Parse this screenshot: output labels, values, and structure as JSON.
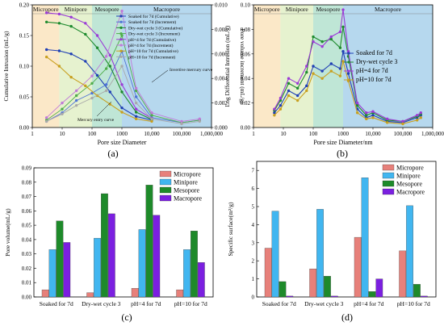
{
  "panels": {
    "a": {
      "label": "(a)",
      "chart_data": {
        "type": "line",
        "xlabel": "Pore size Diameter",
        "ylabel": "Cumulative Intrusion (mL/g)",
        "y2label": "Pore volume increment (mL/g)",
        "xscale": "log",
        "xlim": [
          1,
          1000000
        ],
        "xticks": [
          "1",
          "10",
          "100",
          "1000",
          "10,000",
          "100,000",
          "1,000,000"
        ],
        "ylim": [
          0,
          0.2
        ],
        "yticks": [
          "0.00",
          "0.05",
          "0.10",
          "0.15",
          "0.20"
        ],
        "y2lim": [
          0,
          0.01
        ],
        "y2ticks": [
          "0.000",
          "0.002",
          "0.004",
          "0.006",
          "0.008",
          "0.010"
        ],
        "regions": [
          {
            "name": "Micropore",
            "from": 1,
            "to": 8,
            "color": "#fbe8c8"
          },
          {
            "name": "Minipore",
            "from": 8,
            "to": 100,
            "color": "#e6f2cf"
          },
          {
            "name": "Mesopore",
            "from": 100,
            "to": 1000,
            "color": "#bfe6d6"
          },
          {
            "name": "Macropore",
            "from": 1000,
            "to": 1000000,
            "color": "#b6d8ee"
          }
        ],
        "annotations": [
          "Invertive mercury curve",
          "Mercury entry curve"
        ],
        "series": [
          {
            "name": "Soaked for 7d (Cumulative)",
            "color": "#1f3fb5",
            "axis": "left",
            "x": [
              3,
              8,
              20,
              60,
              150,
              400,
              1000,
              3000,
              10000
            ],
            "y": [
              0.127,
              0.125,
              0.12,
              0.108,
              0.085,
              0.058,
              0.032,
              0.018,
              0.012
            ]
          },
          {
            "name": "Soaked for 7d (Increment)",
            "color": "#4e73d6",
            "axis": "right",
            "x": [
              3,
              10,
              30,
              100,
              300,
              1000,
              3000,
              10000,
              100000,
              400000
            ],
            "y": [
              0.0005,
              0.0012,
              0.0022,
              0.0028,
              0.0035,
              0.0062,
              0.0025,
              0.0008,
              0.0004,
              0.0006
            ]
          },
          {
            "name": "Dry-wet cycle 3 (Cumulative)",
            "color": "#1e8b2e",
            "axis": "left",
            "x": [
              3,
              8,
              20,
              60,
              150,
              400,
              1000,
              3000,
              10000
            ],
            "y": [
              0.172,
              0.17,
              0.165,
              0.152,
              0.13,
              0.1,
              0.058,
              0.025,
              0.013
            ]
          },
          {
            "name": "Dry-wet cycle 3 (Increment)",
            "color": "#4fae4a",
            "axis": "right",
            "x": [
              3,
              10,
              30,
              100,
              300,
              1000,
              3000,
              10000,
              100000,
              400000
            ],
            "y": [
              0.0006,
              0.0015,
              0.0026,
              0.0036,
              0.0048,
              0.0075,
              0.003,
              0.001,
              0.0004,
              0.0006
            ]
          },
          {
            "name": "pH=4 for 7d (Cumulative)",
            "color": "#9b3bd6",
            "axis": "left",
            "x": [
              3,
              8,
              20,
              60,
              150,
              400,
              1000,
              3000,
              10000
            ],
            "y": [
              0.187,
              0.185,
              0.18,
              0.17,
              0.15,
              0.118,
              0.07,
              0.03,
              0.015
            ]
          },
          {
            "name": "pH=4 for 7d (Increment)",
            "color": "#c07ad8",
            "axis": "right",
            "x": [
              3,
              10,
              30,
              100,
              300,
              1000,
              3000,
              10000,
              100000,
              400000
            ],
            "y": [
              0.0008,
              0.002,
              0.003,
              0.0042,
              0.0058,
              0.0095,
              0.0032,
              0.0012,
              0.0005,
              0.0007
            ]
          },
          {
            "name": "pH=10 for 7d (Cumulative)",
            "color": "#c8a020",
            "axis": "left",
            "x": [
              3,
              8,
              20,
              60,
              150,
              400,
              1000,
              3000,
              10000
            ],
            "y": [
              0.115,
              0.1,
              0.082,
              0.068,
              0.052,
              0.038,
              0.025,
              0.014,
              0.01
            ]
          },
          {
            "name": "pH=10 for 7d (Increment)",
            "color": "#a9a9a9",
            "axis": "right",
            "x": [
              3,
              10,
              30,
              100,
              300,
              1000,
              3000,
              10000,
              100000,
              400000
            ],
            "y": [
              0.0005,
              0.0011,
              0.0018,
              0.0024,
              0.003,
              0.005,
              0.002,
              0.0007,
              0.0003,
              0.0005
            ]
          }
        ]
      }
    },
    "b": {
      "label": "(b)",
      "chart_data": {
        "type": "line",
        "xlabel": "Pore size Diameter/nm",
        "ylabel": "Log Differential Intrusion (mL/g)",
        "xscale": "log",
        "xlim": [
          1,
          1000000
        ],
        "xticks": [
          "1",
          "10",
          "100",
          "1000",
          "10,000",
          "100,000",
          "1,000,000"
        ],
        "ylim": [
          0,
          0.1
        ],
        "yticks": [
          "0.00",
          "0.02",
          "0.04",
          "0.06",
          "0.08",
          "0.10"
        ],
        "regions": [
          {
            "name": "Micropore",
            "from": 1,
            "to": 8,
            "color": "#fbe8c8"
          },
          {
            "name": "Minipore",
            "from": 8,
            "to": 100,
            "color": "#e6f2cf"
          },
          {
            "name": "Mesopore",
            "from": 100,
            "to": 1000,
            "color": "#bfe6d6"
          },
          {
            "name": "Macropore",
            "from": 1000,
            "to": 1000000,
            "color": "#b6d8ee"
          }
        ],
        "series": [
          {
            "name": "Soaked for 7d",
            "color": "#1f3fb5",
            "x": [
              5,
              8,
              15,
              30,
              60,
              100,
              200,
              400,
              800,
              1000,
              1500,
              3000,
              6000,
              10000,
              30000,
              100000,
              300000,
              400000
            ],
            "y": [
              0.012,
              0.018,
              0.03,
              0.026,
              0.034,
              0.05,
              0.046,
              0.052,
              0.048,
              0.062,
              0.044,
              0.015,
              0.008,
              0.01,
              0.005,
              0.004,
              0.008,
              0.01
            ]
          },
          {
            "name": "Dry-wet cycle 3",
            "color": "#1e8b2e",
            "x": [
              5,
              8,
              15,
              30,
              60,
              100,
              200,
              400,
              800,
              1000,
              1500,
              3000,
              6000,
              10000,
              30000,
              100000,
              300000,
              400000
            ],
            "y": [
              0.014,
              0.022,
              0.036,
              0.032,
              0.045,
              0.074,
              0.07,
              0.072,
              0.065,
              0.082,
              0.058,
              0.018,
              0.01,
              0.012,
              0.006,
              0.005,
              0.009,
              0.011
            ]
          },
          {
            "name": "pH=4 for 7d",
            "color": "#9b3bd6",
            "x": [
              5,
              8,
              15,
              30,
              60,
              100,
              200,
              400,
              800,
              1000,
              1500,
              3000,
              6000,
              10000,
              30000,
              100000,
              300000,
              400000
            ],
            "y": [
              0.015,
              0.024,
              0.04,
              0.036,
              0.05,
              0.07,
              0.066,
              0.074,
              0.078,
              0.096,
              0.062,
              0.02,
              0.012,
              0.013,
              0.007,
              0.005,
              0.01,
              0.012
            ]
          },
          {
            "name": "pH=10 for 7d",
            "color": "#c8a020",
            "x": [
              5,
              8,
              15,
              30,
              60,
              100,
              200,
              400,
              800,
              1000,
              1500,
              3000,
              6000,
              10000,
              30000,
              100000,
              300000,
              400000
            ],
            "y": [
              0.01,
              0.015,
              0.026,
              0.022,
              0.03,
              0.044,
              0.04,
              0.046,
              0.042,
              0.054,
              0.038,
              0.012,
              0.007,
              0.008,
              0.004,
              0.003,
              0.006,
              0.008
            ]
          }
        ]
      }
    },
    "c": {
      "label": "(c)",
      "chart_data": {
        "type": "bar",
        "ylabel": "Pore volume(mL/g)",
        "ylim": [
          0,
          0.09
        ],
        "yticks": [
          "0.00",
          "0.01",
          "0.02",
          "0.03",
          "0.04",
          "0.05",
          "0.06",
          "0.07",
          "0.08",
          "0.09"
        ],
        "categories": [
          "Soaked for 7d",
          "Dry-wet cycle 3",
          "pH=4 for 7d",
          "pH=10 for 7d"
        ],
        "series": [
          {
            "name": "Micropore",
            "color": "#e7807a",
            "values": [
              0.005,
              0.003,
              0.006,
              0.005
            ]
          },
          {
            "name": "Minipore",
            "color": "#41b6f0",
            "values": [
              0.033,
              0.041,
              0.047,
              0.033
            ]
          },
          {
            "name": "Mesopore",
            "color": "#1e8a2a",
            "values": [
              0.053,
              0.072,
              0.078,
              0.046
            ]
          },
          {
            "name": "Macropore",
            "color": "#7b1fe0",
            "values": [
              0.038,
              0.058,
              0.057,
              0.024
            ]
          }
        ]
      }
    },
    "d": {
      "label": "(d)",
      "chart_data": {
        "type": "bar",
        "ylabel": "Specific surface(m²/g)",
        "ylim": [
          0,
          7.5
        ],
        "yticks": [
          "0",
          "1",
          "2",
          "3",
          "4",
          "5",
          "6",
          "7"
        ],
        "categories": [
          "Soaked for 7d",
          "Dry-wet cycle 3",
          "pH=4 for 7d",
          "pH=10 for 7d"
        ],
        "series": [
          {
            "name": "Micropore",
            "color": "#e7807a",
            "values": [
              2.7,
              1.55,
              3.3,
              2.55
            ]
          },
          {
            "name": "Minipore",
            "color": "#41b6f0",
            "values": [
              4.75,
              4.85,
              6.6,
              5.05
            ]
          },
          {
            "name": "Mesopore",
            "color": "#1e8a2a",
            "values": [
              0.85,
              1.15,
              0.3,
              0.7
            ]
          },
          {
            "name": "Macropore",
            "color": "#7b1fe0",
            "values": [
              0.05,
              0.05,
              1.0,
              0.05
            ]
          }
        ]
      }
    }
  }
}
